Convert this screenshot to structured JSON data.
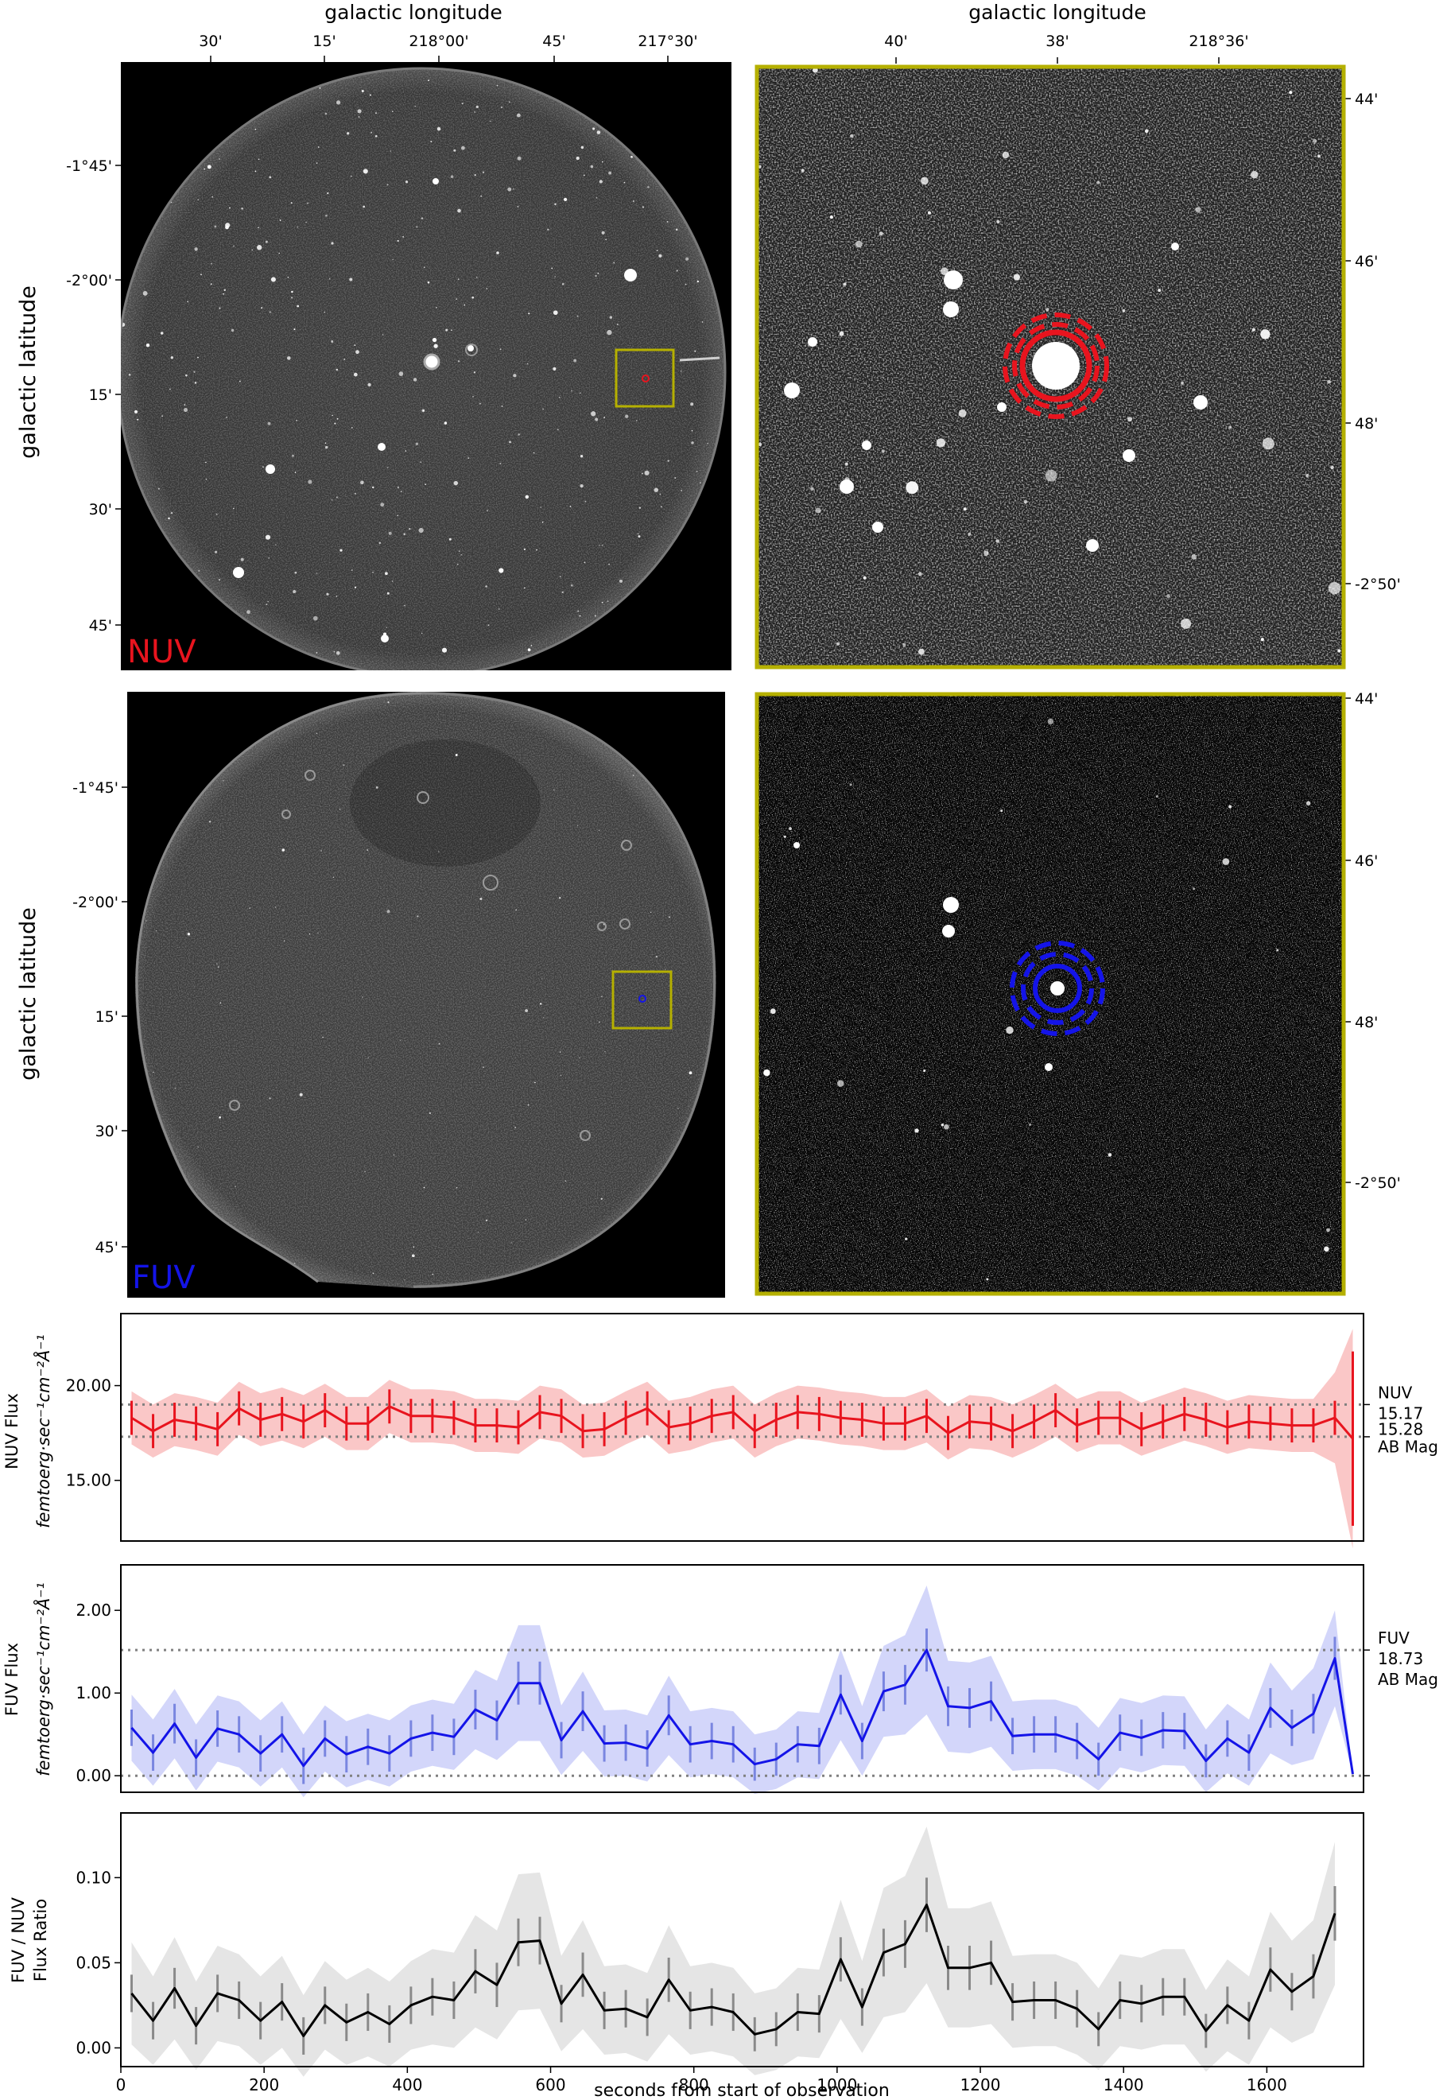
{
  "images": {
    "nuv_full": {
      "band_label": "NUV",
      "band_color": "#e8141e",
      "xaxis_title": "galactic longitude",
      "yaxis_title": "galactic latitude",
      "x_ticks": [
        "30'",
        "15'",
        "218°00'",
        "45'",
        "217°30'"
      ],
      "y_ticks": [
        "-1°45'",
        "-2°00'",
        "15'",
        "30'",
        "45'"
      ]
    },
    "nuv_zoom": {
      "xaxis_title": "galactic longitude",
      "x_ticks": [
        "40'",
        "38'",
        "218°36'"
      ],
      "y_ticks": [
        "44'",
        "46'",
        "48'",
        "-2°50'"
      ],
      "aperture_color": "#e8141e"
    },
    "fuv_full": {
      "band_label": "FUV",
      "band_color": "#1414e8",
      "yaxis_title": "galactic latitude",
      "y_ticks": [
        "-1°45'",
        "-2°00'",
        "15'",
        "30'",
        "45'"
      ]
    },
    "fuv_zoom": {
      "y_ticks": [
        "44'",
        "46'",
        "48'",
        "-2°50'"
      ],
      "aperture_color": "#1414e8"
    },
    "frame_color": "#b5b000"
  },
  "chart_data": [
    {
      "type": "line",
      "panel": "nuv",
      "ylabel_line1": "NUV Flux",
      "ylabel_line2": "femtoerg·sec⁻¹cm⁻²Å⁻¹",
      "ylim": [
        11.8,
        23.8
      ],
      "xlim": [
        0,
        1735
      ],
      "y_ticks": [
        "20.00",
        "15.00"
      ],
      "y_tick_values": [
        20,
        15
      ],
      "line_color": "#e8141e",
      "band_color": "#f8b4b4",
      "ref_lines": [
        19.0,
        17.3
      ],
      "ref_label_band": "NUV",
      "ref_label_mag1": "15.17",
      "ref_label_mag2": "15.28",
      "ref_label_unit": "AB Mag",
      "x": [
        15,
        45,
        75,
        105,
        135,
        165,
        195,
        225,
        255,
        285,
        315,
        345,
        375,
        405,
        435,
        465,
        495,
        525,
        555,
        585,
        615,
        645,
        675,
        705,
        735,
        765,
        795,
        825,
        855,
        885,
        915,
        945,
        975,
        1005,
        1035,
        1065,
        1095,
        1125,
        1155,
        1185,
        1215,
        1245,
        1275,
        1305,
        1335,
        1365,
        1395,
        1425,
        1455,
        1485,
        1515,
        1545,
        1575,
        1605,
        1635,
        1665,
        1695,
        1720
      ],
      "values": [
        18.3,
        17.6,
        18.2,
        18.0,
        17.7,
        18.8,
        18.2,
        18.5,
        18.1,
        18.7,
        18.0,
        18.0,
        18.9,
        18.4,
        18.4,
        18.3,
        17.9,
        17.9,
        17.8,
        18.6,
        18.4,
        17.6,
        17.7,
        18.3,
        18.8,
        17.8,
        18.0,
        18.4,
        18.6,
        17.6,
        18.2,
        18.6,
        18.5,
        18.3,
        18.2,
        18.0,
        18.0,
        18.4,
        17.5,
        18.1,
        18.0,
        17.6,
        18.1,
        18.7,
        17.9,
        18.3,
        18.3,
        17.7,
        18.1,
        18.5,
        18.2,
        17.8,
        18.1,
        18.0,
        17.9,
        17.9,
        18.3,
        17.2
      ],
      "errors": [
        0.9,
        0.9,
        0.9,
        0.9,
        0.9,
        0.9,
        0.9,
        0.9,
        0.9,
        0.9,
        0.9,
        0.9,
        0.9,
        0.9,
        0.9,
        0.9,
        0.9,
        0.9,
        0.9,
        0.9,
        0.9,
        0.9,
        0.9,
        0.9,
        0.9,
        0.9,
        0.9,
        0.9,
        0.9,
        0.9,
        0.9,
        0.9,
        0.9,
        0.9,
        0.9,
        0.9,
        0.9,
        0.9,
        0.9,
        0.9,
        0.9,
        0.9,
        0.9,
        0.9,
        0.9,
        0.9,
        0.9,
        0.9,
        0.9,
        0.9,
        0.9,
        0.9,
        0.9,
        0.9,
        0.9,
        0.9,
        0.9,
        4.6
      ],
      "band_halfwidth": [
        1.4,
        1.4,
        1.4,
        1.4,
        1.4,
        1.4,
        1.4,
        1.4,
        1.4,
        1.4,
        1.4,
        1.4,
        1.4,
        1.4,
        1.4,
        1.4,
        1.4,
        1.4,
        1.4,
        1.4,
        1.4,
        1.4,
        1.4,
        1.4,
        1.4,
        1.4,
        1.4,
        1.4,
        1.4,
        1.4,
        1.4,
        1.4,
        1.4,
        1.4,
        1.4,
        1.4,
        1.4,
        1.4,
        1.4,
        1.4,
        1.4,
        1.4,
        1.4,
        1.4,
        1.4,
        1.4,
        1.4,
        1.4,
        1.4,
        1.4,
        1.4,
        1.4,
        1.4,
        1.4,
        1.4,
        1.4,
        2.4,
        5.8
      ]
    },
    {
      "type": "line",
      "panel": "fuv",
      "ylabel_line1": "FUV Flux",
      "ylabel_line2": "femtoerg·sec⁻¹cm⁻²Å⁻¹",
      "ylim": [
        -0.2,
        2.55
      ],
      "xlim": [
        0,
        1735
      ],
      "y_ticks": [
        "2.00",
        "1.00",
        "0.00"
      ],
      "y_tick_values": [
        2,
        1,
        0
      ],
      "line_color": "#1414e8",
      "band_color": "#c4c8f8",
      "ref_lines": [
        1.52,
        0.0
      ],
      "ref_label_band": "FUV",
      "ref_label_mag1": "18.73",
      "ref_label_unit": "AB Mag",
      "x": [
        15,
        45,
        75,
        105,
        135,
        165,
        195,
        225,
        255,
        285,
        315,
        345,
        375,
        405,
        435,
        465,
        495,
        525,
        555,
        585,
        615,
        645,
        675,
        705,
        735,
        765,
        795,
        825,
        855,
        885,
        915,
        945,
        975,
        1005,
        1035,
        1065,
        1095,
        1125,
        1155,
        1185,
        1215,
        1245,
        1275,
        1305,
        1335,
        1365,
        1395,
        1425,
        1455,
        1485,
        1515,
        1545,
        1575,
        1605,
        1635,
        1665,
        1695,
        1720
      ],
      "values": [
        0.58,
        0.28,
        0.63,
        0.22,
        0.57,
        0.5,
        0.27,
        0.5,
        0.12,
        0.45,
        0.26,
        0.35,
        0.27,
        0.45,
        0.52,
        0.47,
        0.8,
        0.67,
        1.12,
        1.12,
        0.43,
        0.78,
        0.39,
        0.4,
        0.33,
        0.73,
        0.38,
        0.42,
        0.38,
        0.14,
        0.2,
        0.38,
        0.36,
        0.98,
        0.42,
        1.02,
        1.1,
        1.52,
        0.84,
        0.82,
        0.9,
        0.48,
        0.5,
        0.5,
        0.42,
        0.2,
        0.52,
        0.46,
        0.55,
        0.54,
        0.18,
        0.45,
        0.28,
        0.82,
        0.58,
        0.75,
        1.42,
        0.02
      ],
      "errors": [
        0.22,
        0.22,
        0.24,
        0.22,
        0.22,
        0.22,
        0.22,
        0.22,
        0.22,
        0.22,
        0.22,
        0.22,
        0.22,
        0.22,
        0.22,
        0.22,
        0.24,
        0.24,
        0.26,
        0.26,
        0.22,
        0.24,
        0.22,
        0.22,
        0.22,
        0.24,
        0.22,
        0.22,
        0.22,
        0.2,
        0.2,
        0.22,
        0.22,
        0.24,
        0.22,
        0.24,
        0.24,
        0.26,
        0.24,
        0.24,
        0.24,
        0.22,
        0.22,
        0.22,
        0.22,
        0.2,
        0.22,
        0.22,
        0.22,
        0.22,
        0.2,
        0.22,
        0.22,
        0.24,
        0.22,
        0.24,
        0.26,
        0.0
      ],
      "band_halfwidth": [
        0.4,
        0.4,
        0.42,
        0.4,
        0.4,
        0.4,
        0.4,
        0.4,
        0.38,
        0.4,
        0.4,
        0.4,
        0.4,
        0.4,
        0.4,
        0.4,
        0.48,
        0.48,
        0.7,
        0.7,
        0.42,
        0.48,
        0.4,
        0.4,
        0.4,
        0.48,
        0.4,
        0.4,
        0.4,
        0.36,
        0.36,
        0.4,
        0.4,
        0.55,
        0.42,
        0.55,
        0.6,
        0.78,
        0.55,
        0.55,
        0.55,
        0.42,
        0.42,
        0.42,
        0.42,
        0.38,
        0.42,
        0.42,
        0.42,
        0.42,
        0.38,
        0.42,
        0.4,
        0.55,
        0.45,
        0.55,
        0.58,
        0.0
      ]
    },
    {
      "type": "line",
      "panel": "ratio",
      "ylabel_line1": "FUV / NUV",
      "ylabel_line2": "Flux Ratio",
      "xlabel": "seconds from start of observation",
      "ylim": [
        -0.011,
        0.138
      ],
      "xlim": [
        0,
        1735
      ],
      "y_ticks": [
        "0.10",
        "0.05",
        "0.00"
      ],
      "y_tick_values": [
        0.1,
        0.05,
        0.0
      ],
      "x_ticks": [
        "0",
        "200",
        "400",
        "600",
        "800",
        "1000",
        "1200",
        "1400",
        "1600"
      ],
      "x_tick_values": [
        0,
        200,
        400,
        600,
        800,
        1000,
        1200,
        1400,
        1600
      ],
      "line_color": "#000000",
      "band_color": "#dcdcdc",
      "x": [
        15,
        45,
        75,
        105,
        135,
        165,
        195,
        225,
        255,
        285,
        315,
        345,
        375,
        405,
        435,
        465,
        495,
        525,
        555,
        585,
        615,
        645,
        675,
        705,
        735,
        765,
        795,
        825,
        855,
        885,
        915,
        945,
        975,
        1005,
        1035,
        1065,
        1095,
        1125,
        1155,
        1185,
        1215,
        1245,
        1275,
        1305,
        1335,
        1365,
        1395,
        1425,
        1455,
        1485,
        1515,
        1545,
        1575,
        1605,
        1635,
        1665,
        1695
      ],
      "values": [
        0.032,
        0.016,
        0.035,
        0.013,
        0.032,
        0.028,
        0.016,
        0.027,
        0.007,
        0.025,
        0.015,
        0.021,
        0.014,
        0.025,
        0.03,
        0.028,
        0.045,
        0.037,
        0.062,
        0.063,
        0.026,
        0.043,
        0.022,
        0.023,
        0.018,
        0.04,
        0.022,
        0.024,
        0.021,
        0.008,
        0.011,
        0.021,
        0.02,
        0.052,
        0.024,
        0.056,
        0.061,
        0.084,
        0.047,
        0.047,
        0.05,
        0.027,
        0.028,
        0.028,
        0.023,
        0.011,
        0.028,
        0.026,
        0.03,
        0.03,
        0.01,
        0.025,
        0.016,
        0.046,
        0.033,
        0.042,
        0.079
      ],
      "errors": [
        0.011,
        0.011,
        0.012,
        0.011,
        0.011,
        0.011,
        0.011,
        0.011,
        0.011,
        0.011,
        0.011,
        0.011,
        0.011,
        0.011,
        0.011,
        0.011,
        0.013,
        0.013,
        0.014,
        0.014,
        0.011,
        0.013,
        0.011,
        0.011,
        0.011,
        0.013,
        0.011,
        0.011,
        0.011,
        0.01,
        0.01,
        0.011,
        0.011,
        0.013,
        0.011,
        0.014,
        0.014,
        0.016,
        0.013,
        0.013,
        0.013,
        0.011,
        0.011,
        0.011,
        0.011,
        0.01,
        0.011,
        0.011,
        0.011,
        0.011,
        0.01,
        0.011,
        0.011,
        0.013,
        0.011,
        0.013,
        0.016
      ],
      "band_halfwidth": [
        0.03,
        0.026,
        0.03,
        0.026,
        0.028,
        0.027,
        0.026,
        0.027,
        0.024,
        0.026,
        0.025,
        0.026,
        0.025,
        0.026,
        0.028,
        0.028,
        0.033,
        0.032,
        0.04,
        0.04,
        0.028,
        0.032,
        0.026,
        0.026,
        0.026,
        0.032,
        0.026,
        0.026,
        0.026,
        0.024,
        0.024,
        0.026,
        0.026,
        0.035,
        0.027,
        0.038,
        0.04,
        0.046,
        0.035,
        0.035,
        0.036,
        0.027,
        0.027,
        0.027,
        0.027,
        0.024,
        0.027,
        0.027,
        0.028,
        0.028,
        0.024,
        0.027,
        0.026,
        0.034,
        0.03,
        0.033,
        0.042
      ]
    }
  ]
}
